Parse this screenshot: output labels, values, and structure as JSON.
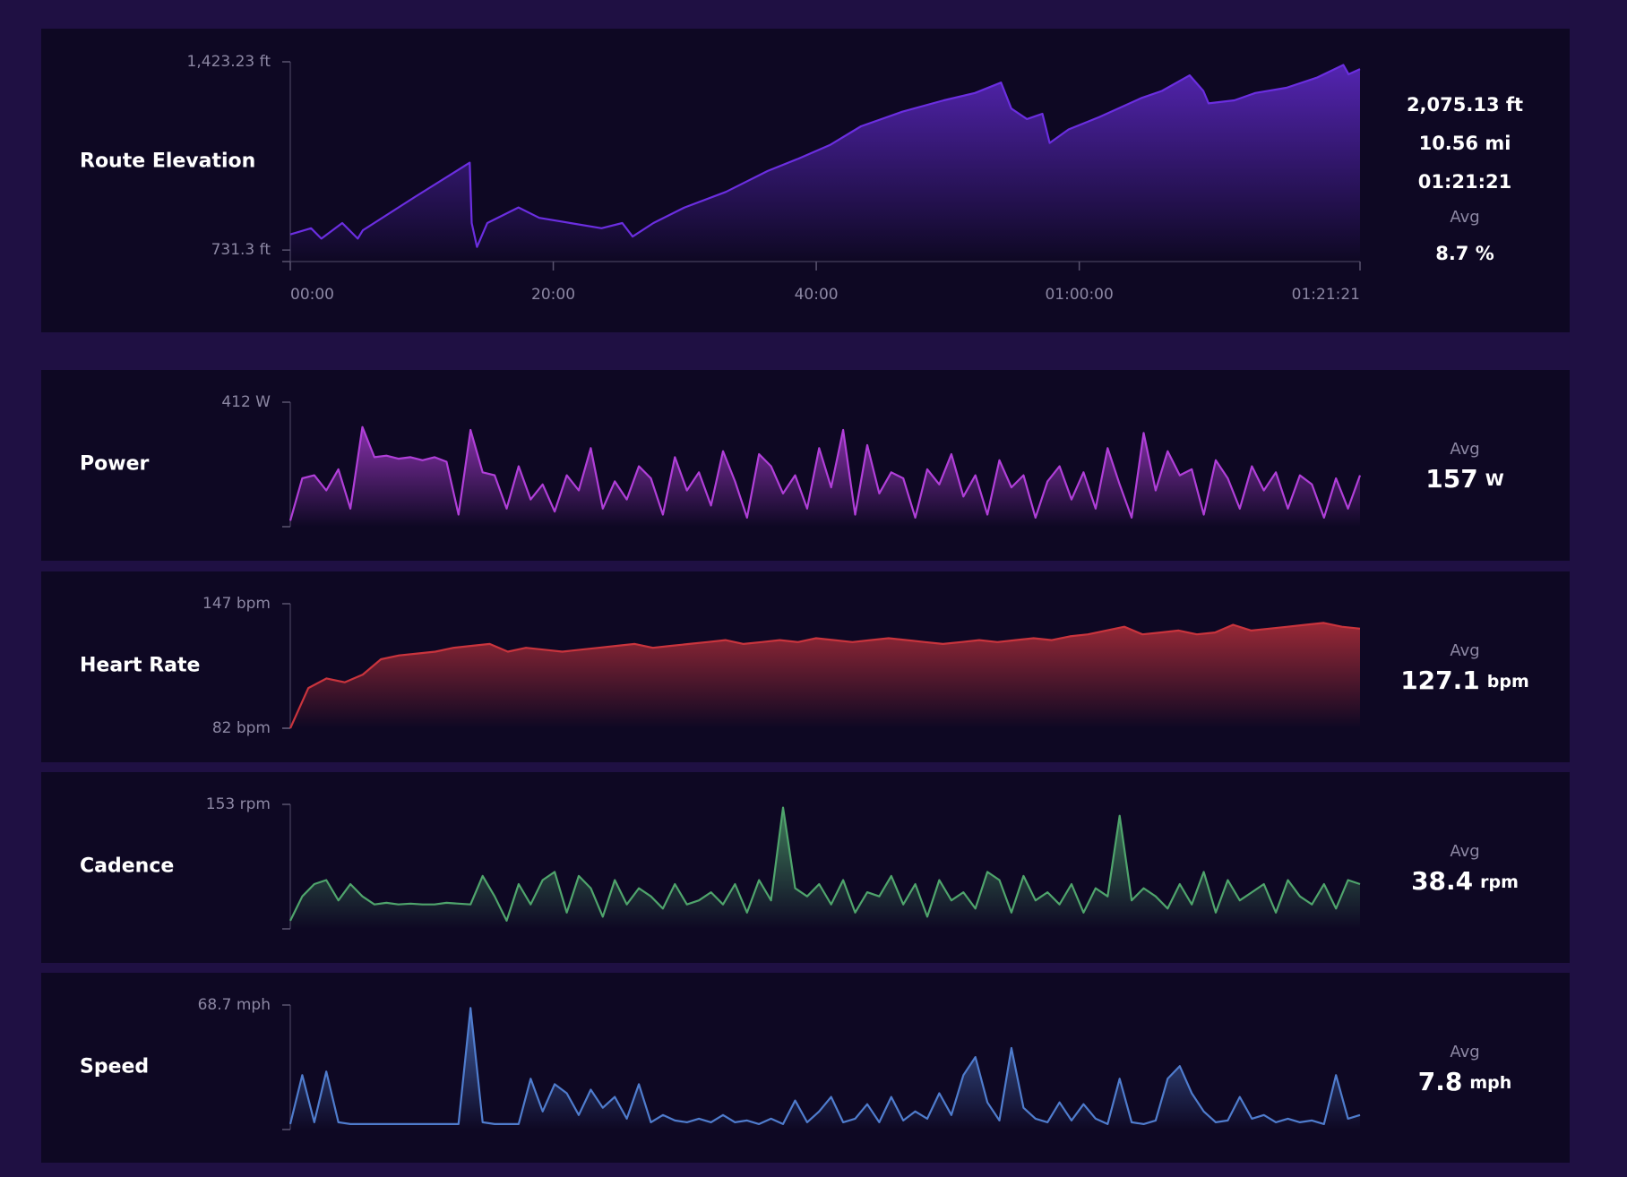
{
  "chart_data": [
    {
      "type": "area",
      "title": "Route Elevation",
      "color": "#6b2ee0",
      "x": [
        0,
        95,
        142,
        237,
        308,
        331,
        568,
        819,
        828,
        852,
        899,
        1041,
        1136,
        1278,
        1420,
        1515,
        1562,
        1657,
        1799,
        1988,
        2178,
        2320,
        2462,
        2604,
        2793,
        2982,
        3124,
        3243,
        3290,
        3361,
        3432,
        3465,
        3551,
        3693,
        3882,
        3977,
        4104,
        4166,
        4190,
        4308,
        4403,
        4545,
        4687,
        4805,
        4829,
        4881
      ],
      "values": [
        788.6,
        811.5,
        773.3,
        830.6,
        773.3,
        803.9,
        926.2,
        1052.4,
        830.6,
        742.7,
        830.6,
        888.0,
        849.7,
        830.6,
        811.5,
        830.6,
        780.9,
        830.6,
        888.0,
        945.3,
        1021.8,
        1067.7,
        1117.4,
        1186.2,
        1239.7,
        1281.8,
        1308.5,
        1346.8,
        1251.2,
        1213.0,
        1232.1,
        1125.0,
        1174.7,
        1220.6,
        1289.4,
        1316.2,
        1373.5,
        1316.2,
        1270.3,
        1281.8,
        1308.5,
        1327.6,
        1365.9,
        1411.8,
        1377.4,
        1396.5
      ],
      "xlim": [
        0,
        4881
      ],
      "xticks": [
        {
          "value": 0,
          "label": "00:00"
        },
        {
          "value": 1200,
          "label": "20:00"
        },
        {
          "value": 2400,
          "label": "40:00"
        },
        {
          "value": 3600,
          "label": "01:00:00"
        },
        {
          "value": 4881,
          "label": "01:21:21"
        }
      ],
      "ylim": [
        689,
        1423.23
      ],
      "yticks": [
        {
          "value": 1423.23,
          "label": "1,423.23 ft"
        },
        {
          "value": 731.3,
          "label": "731.3 ft"
        }
      ],
      "summary": [
        "2,075.13 ft",
        "10.56 mi",
        "01:21:21"
      ],
      "stat": {
        "label": "Avg",
        "value": "8.7 %"
      }
    },
    {
      "type": "area",
      "title": "Power",
      "color": "#b03fd8",
      "values": [
        20,
        160,
        170,
        120,
        190,
        60,
        330,
        230,
        235,
        225,
        230,
        220,
        230,
        215,
        40,
        320,
        180,
        170,
        60,
        200,
        90,
        140,
        50,
        170,
        120,
        260,
        60,
        150,
        90,
        200,
        160,
        40,
        230,
        120,
        180,
        70,
        250,
        150,
        30,
        240,
        200,
        110,
        170,
        60,
        260,
        130,
        320,
        40,
        270,
        110,
        180,
        160,
        30,
        190,
        140,
        240,
        100,
        170,
        40,
        220,
        130,
        170,
        30,
        150,
        200,
        90,
        180,
        60,
        260,
        140,
        30,
        310,
        120,
        250,
        170,
        190,
        40,
        220,
        160,
        60,
        200,
        120,
        180,
        60,
        170,
        140,
        30,
        160,
        60,
        170
      ],
      "ylim": [
        0,
        412
      ],
      "yticks": [
        {
          "value": 412,
          "label": "412 W"
        }
      ],
      "stat": {
        "label": "Avg",
        "value": 157,
        "unit": "W"
      }
    },
    {
      "type": "area",
      "title": "Heart Rate",
      "color": "#c9343d",
      "values": [
        82,
        103,
        108,
        106,
        110,
        118,
        120,
        121,
        122,
        124,
        125,
        126,
        122,
        124,
        123,
        122,
        123,
        124,
        125,
        126,
        124,
        125,
        126,
        127,
        128,
        126,
        127,
        128,
        127,
        129,
        128,
        127,
        128,
        129,
        128,
        127,
        126,
        127,
        128,
        127,
        128,
        129,
        128,
        130,
        131,
        133,
        135,
        131,
        132,
        133,
        131,
        132,
        136,
        133,
        134,
        135,
        136,
        137,
        135,
        134
      ],
      "ylim": [
        82,
        147
      ],
      "yticks": [
        {
          "value": 147,
          "label": "147 bpm"
        },
        {
          "value": 82,
          "label": "82 bpm"
        }
      ],
      "stat": {
        "label": "Avg",
        "value": 127.1,
        "unit": "bpm"
      }
    },
    {
      "type": "area",
      "title": "Cadence",
      "color": "#4fa46c",
      "values": [
        10,
        40,
        55,
        60,
        35,
        55,
        40,
        30,
        32,
        30,
        31,
        30,
        30,
        32,
        31,
        30,
        65,
        40,
        10,
        55,
        30,
        60,
        70,
        20,
        65,
        50,
        15,
        60,
        30,
        50,
        40,
        25,
        55,
        30,
        35,
        45,
        30,
        55,
        20,
        60,
        35,
        149,
        50,
        40,
        55,
        30,
        60,
        20,
        45,
        40,
        65,
        30,
        55,
        15,
        60,
        35,
        45,
        25,
        70,
        60,
        20,
        65,
        35,
        45,
        30,
        55,
        20,
        50,
        40,
        139,
        35,
        50,
        40,
        25,
        55,
        30,
        70,
        20,
        60,
        35,
        45,
        55,
        20,
        60,
        40,
        30,
        55,
        25,
        60,
        55
      ],
      "ylim": [
        0,
        153
      ],
      "yticks": [
        {
          "value": 153,
          "label": "153 rpm"
        }
      ],
      "stat": {
        "label": "Avg",
        "value": 38.4,
        "unit": "rpm"
      }
    },
    {
      "type": "area",
      "title": "Speed",
      "color": "#4f7ccd",
      "values": [
        3,
        30,
        4,
        32,
        4,
        3,
        3,
        3,
        3,
        3,
        3,
        3,
        3,
        3,
        3,
        67,
        4,
        3,
        3,
        3,
        28,
        10,
        25,
        20,
        8,
        22,
        12,
        18,
        6,
        25,
        4,
        8,
        5,
        4,
        6,
        4,
        8,
        4,
        5,
        3,
        6,
        3,
        16,
        4,
        10,
        18,
        4,
        6,
        14,
        4,
        18,
        5,
        10,
        6,
        20,
        8,
        30,
        40,
        15,
        5,
        45,
        12,
        6,
        4,
        15,
        5,
        14,
        6,
        3,
        28,
        4,
        3,
        5,
        28,
        35,
        20,
        10,
        4,
        5,
        18,
        6,
        8,
        4,
        6,
        4,
        5,
        3,
        30,
        6,
        8
      ],
      "ylim": [
        0,
        68.7
      ],
      "yticks": [
        {
          "value": 68.7,
          "label": "68.7 mph"
        }
      ],
      "stat": {
        "label": "Avg",
        "value": 7.8,
        "unit": "mph"
      }
    }
  ]
}
